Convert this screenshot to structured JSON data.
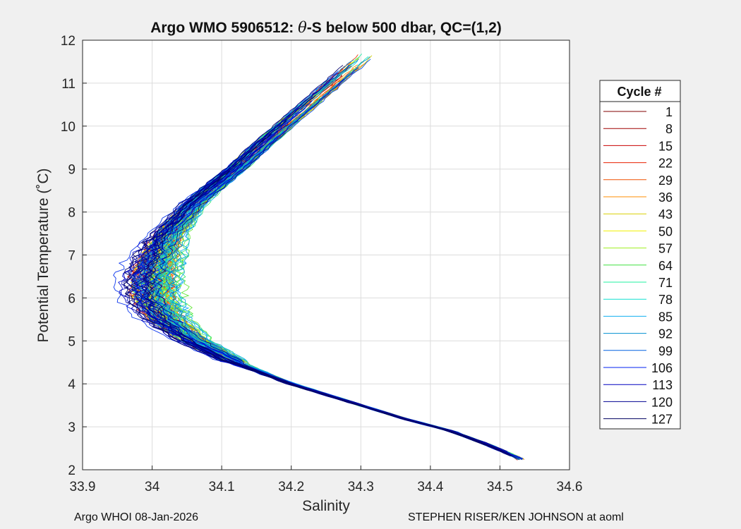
{
  "chart_data": {
    "type": "line",
    "title_prefix": "Argo WMO 5906512: ",
    "title_theta": "θ",
    "title_suffix": "-S below 500 dbar,  QC=(1,2)",
    "xlabel": "Salinity",
    "ylabel": "Potential Temperature (˚C)",
    "xlim": [
      33.9,
      34.6
    ],
    "ylim": [
      2,
      12
    ],
    "xticks": [
      "33.9",
      "34",
      "34.1",
      "34.2",
      "34.3",
      "34.4",
      "34.5",
      "34.6"
    ],
    "yticks": [
      "2",
      "3",
      "4",
      "5",
      "6",
      "7",
      "8",
      "9",
      "10",
      "11",
      "12"
    ],
    "grid": true,
    "legend_position": "outside-right",
    "legend_title": "Cycle #",
    "legend": [
      {
        "label": "1",
        "color": "#800000"
      },
      {
        "label": "8",
        "color": "#a00000"
      },
      {
        "label": "15",
        "color": "#c80000"
      },
      {
        "label": "22",
        "color": "#e82000"
      },
      {
        "label": "29",
        "color": "#f05000"
      },
      {
        "label": "36",
        "color": "#ff8c00"
      },
      {
        "label": "43",
        "color": "#d8d000"
      },
      {
        "label": "50",
        "color": "#f0f000"
      },
      {
        "label": "57",
        "color": "#a0f020"
      },
      {
        "label": "64",
        "color": "#40e040"
      },
      {
        "label": "71",
        "color": "#20f0a0"
      },
      {
        "label": "78",
        "color": "#10e0d0"
      },
      {
        "label": "85",
        "color": "#10b0f0"
      },
      {
        "label": "92",
        "color": "#0090d0"
      },
      {
        "label": "99",
        "color": "#0060e0"
      },
      {
        "label": "106",
        "color": "#0020f0"
      },
      {
        "label": "113",
        "color": "#0000c0"
      },
      {
        "label": "120",
        "color": "#000090"
      },
      {
        "label": "127",
        "color": "#000060"
      }
    ],
    "mean_profile": {
      "salinity": [
        34.31,
        34.26,
        34.21,
        34.16,
        34.12,
        34.09,
        34.06,
        34.04,
        34.02,
        34.01,
        34.0,
        34.0,
        34.02,
        34.06,
        34.12,
        34.2,
        34.28,
        34.36,
        34.43,
        34.48,
        34.53
      ],
      "theta": [
        11.7,
        11.0,
        10.3,
        9.6,
        9.0,
        8.6,
        8.2,
        7.8,
        7.4,
        7.0,
        6.5,
        6.0,
        5.5,
        5.0,
        4.5,
        4.0,
        3.6,
        3.2,
        2.9,
        2.6,
        2.25
      ]
    }
  },
  "footer_left": "Argo WHOI 08-Jan-2026",
  "footer_right": "STEPHEN RISER/KEN JOHNSON at aoml"
}
